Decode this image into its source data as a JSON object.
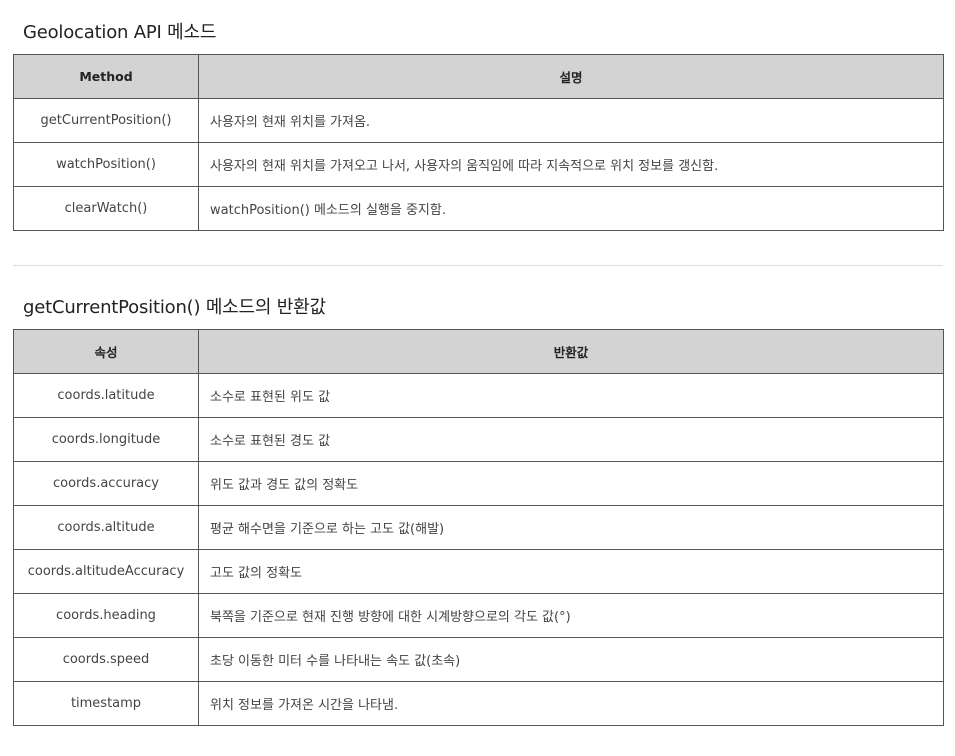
{
  "section1": {
    "title": "Geolocation API 메소드",
    "headers": [
      "Method",
      "설명"
    ],
    "rows": [
      {
        "name": "getCurrentPosition()",
        "desc": "사용자의 현재 위치를 가져옴."
      },
      {
        "name": "watchPosition()",
        "desc": "사용자의 현재 위치를 가져오고 나서, 사용자의 움직임에 따라 지속적으로 위치 정보를 갱신함."
      },
      {
        "name": "clearWatch()",
        "desc": "watchPosition() 메소드의 실행을 중지함."
      }
    ]
  },
  "section2": {
    "title": "getCurrentPosition() 메소드의 반환값",
    "headers": [
      "속성",
      "반환값"
    ],
    "rows": [
      {
        "name": "coords.latitude",
        "desc": "소수로 표현된 위도 값"
      },
      {
        "name": "coords.longitude",
        "desc": "소수로 표현된 경도 값"
      },
      {
        "name": "coords.accuracy",
        "desc": "위도 값과 경도 값의 정확도"
      },
      {
        "name": "coords.altitude",
        "desc": "평균 해수면을 기준으로 하는 고도 값(해발)"
      },
      {
        "name": "coords.altitudeAccuracy",
        "desc": "고도 값의 정확도"
      },
      {
        "name": "coords.heading",
        "desc": "북쪽을 기준으로 현재 진행 방향에 대한 시계방향으로의 각도 값(°)"
      },
      {
        "name": "coords.speed",
        "desc": "초당 이동한 미터 수를 나타내는 속도 값(초속)"
      },
      {
        "name": "timestamp",
        "desc": "위치 정보를 가져온 시간을 나타냄."
      }
    ]
  }
}
